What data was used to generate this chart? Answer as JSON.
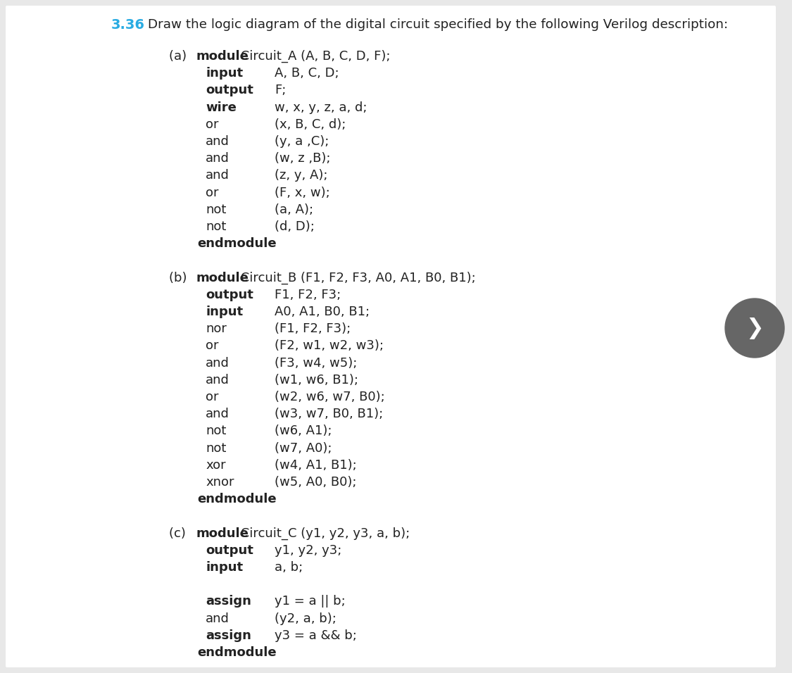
{
  "bg_color": "#ffffff",
  "page_bg": "#e8e8e8",
  "title_num": "3.36",
  "title_num_color": "#29abe2",
  "body_fontsize": 13.0,
  "arrow_bg": "#666666",
  "lines": [
    [
      {
        "t": "(a) ",
        "b": false
      },
      {
        "t": "module",
        "b": true
      },
      {
        "t": " Circuit_A (A, B, C, D, F);",
        "b": false
      }
    ],
    [
      {
        "t": "   input",
        "b": true
      },
      {
        "t": "    A, B, C, D;",
        "b": false
      }
    ],
    [
      {
        "t": "   output",
        "b": true
      },
      {
        "t": "   F;",
        "b": false
      }
    ],
    [
      {
        "t": "   wire",
        "b": true
      },
      {
        "t": "     w, x, y, z, a, d;",
        "b": false
      }
    ],
    [
      {
        "t": "   or",
        "b": false
      },
      {
        "t": "       (x, B, C, d);",
        "b": false
      }
    ],
    [
      {
        "t": "   and",
        "b": false
      },
      {
        "t": "      (y, a ,C);",
        "b": false
      }
    ],
    [
      {
        "t": "   and",
        "b": false
      },
      {
        "t": "      (w, z ,B);",
        "b": false
      }
    ],
    [
      {
        "t": "   and",
        "b": false
      },
      {
        "t": "      (z, y, A);",
        "b": false
      }
    ],
    [
      {
        "t": "   or",
        "b": false
      },
      {
        "t": "       (F, x, w);",
        "b": false
      }
    ],
    [
      {
        "t": "   not",
        "b": false
      },
      {
        "t": "      (a, A);",
        "b": false
      }
    ],
    [
      {
        "t": "   not",
        "b": false
      },
      {
        "t": "      (d, D);",
        "b": false
      }
    ],
    [
      {
        "t": "  endmodule",
        "b": true
      }
    ],
    [
      {
        "t": "",
        "b": false
      }
    ],
    [
      {
        "t": "(b) ",
        "b": false
      },
      {
        "t": "module",
        "b": true
      },
      {
        "t": " Circuit_B (F1, F2, F3, A0, A1, B0, B1);",
        "b": false
      }
    ],
    [
      {
        "t": "   output",
        "b": true
      },
      {
        "t": "   F1, F2, F3;",
        "b": false
      }
    ],
    [
      {
        "t": "   input",
        "b": true
      },
      {
        "t": "    A0, A1, B0, B1;",
        "b": false
      }
    ],
    [
      {
        "t": "   nor",
        "b": false
      },
      {
        "t": "      (F1, F2, F3);",
        "b": false
      }
    ],
    [
      {
        "t": "   or",
        "b": false
      },
      {
        "t": "       (F2, w1, w2, w3);",
        "b": false
      }
    ],
    [
      {
        "t": "   and",
        "b": false
      },
      {
        "t": "      (F3, w4, w5);",
        "b": false
      }
    ],
    [
      {
        "t": "   and",
        "b": false
      },
      {
        "t": "      (w1, w6, B1);",
        "b": false
      }
    ],
    [
      {
        "t": "   or",
        "b": false
      },
      {
        "t": "       (w2, w6, w7, B0);",
        "b": false
      }
    ],
    [
      {
        "t": "   and",
        "b": false
      },
      {
        "t": "      (w3, w7, B0, B1);",
        "b": false
      }
    ],
    [
      {
        "t": "   not",
        "b": false
      },
      {
        "t": "      (w6, A1);",
        "b": false
      }
    ],
    [
      {
        "t": "   not",
        "b": false
      },
      {
        "t": "      (w7, A0);",
        "b": false
      }
    ],
    [
      {
        "t": "   xor",
        "b": false
      },
      {
        "t": "      (w4, A1, B1);",
        "b": false
      }
    ],
    [
      {
        "t": "   xnor",
        "b": false
      },
      {
        "t": "     (w5, A0, B0);",
        "b": false
      }
    ],
    [
      {
        "t": "  endmodule",
        "b": true
      }
    ],
    [
      {
        "t": "",
        "b": false
      }
    ],
    [
      {
        "t": "(c) ",
        "b": false
      },
      {
        "t": "module",
        "b": true
      },
      {
        "t": " Circuit_C (y1, y2, y3, a, b);",
        "b": false
      }
    ],
    [
      {
        "t": "   output",
        "b": true
      },
      {
        "t": " y1, y2, y3;",
        "b": false
      }
    ],
    [
      {
        "t": "   input",
        "b": true
      },
      {
        "t": " a, b;",
        "b": false
      }
    ],
    [
      {
        "t": "",
        "b": false
      }
    ],
    [
      {
        "t": "   assign",
        "b": true
      },
      {
        "t": " y1 = a || b;",
        "b": false
      }
    ],
    [
      {
        "t": "   and",
        "b": false
      },
      {
        "t": " (y2, a, b);",
        "b": false
      }
    ],
    [
      {
        "t": "   assign",
        "b": true
      },
      {
        "t": " y3 = a && b;",
        "b": false
      }
    ],
    [
      {
        "t": "  endmodule",
        "b": true
      }
    ]
  ]
}
